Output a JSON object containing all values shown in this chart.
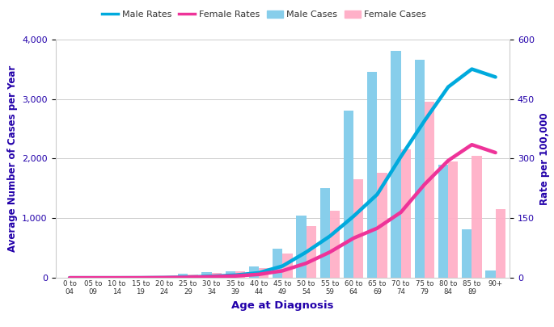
{
  "age_groups": [
    "0 to\n04",
    "05 to\n09",
    "10 to\n14",
    "15 to\n19",
    "20 to\n24",
    "25 to\n29",
    "30 to\n34",
    "35 to\n39",
    "40 to\n44",
    "45 to\n49",
    "50 to\n54",
    "55 to\n59",
    "60 to\n64",
    "65 to\n69",
    "70 to\n74",
    "75 to\n79",
    "80 to\n84",
    "85 to\n89",
    "90+"
  ],
  "age_labels_top": [
    "0 to",
    "05 to",
    "10 to",
    "15 to",
    "20 to",
    "25 to",
    "30 to",
    "35 to",
    "40 to",
    "45 to",
    "50 to",
    "55 to",
    "60 to",
    "65 to",
    "70 to",
    "75 to",
    "80 to",
    "85 to",
    "90+"
  ],
  "age_labels_bot": [
    "04",
    "09",
    "14",
    "19",
    "24",
    "29",
    "34",
    "39",
    "44",
    "49",
    "54",
    "59",
    "64",
    "69",
    "74",
    "79",
    "84",
    "89",
    ""
  ],
  "male_cases": [
    5,
    5,
    5,
    10,
    15,
    70,
    95,
    110,
    190,
    490,
    1040,
    1500,
    2800,
    3450,
    3800,
    3650,
    1900,
    820,
    120
  ],
  "female_cases": [
    5,
    5,
    5,
    10,
    15,
    55,
    85,
    105,
    165,
    410,
    870,
    1120,
    1650,
    1760,
    2150,
    2950,
    1950,
    2050,
    1150
  ],
  "male_rates": [
    0.3,
    0.3,
    0.3,
    0.4,
    0.8,
    2,
    4,
    7,
    13,
    30,
    65,
    105,
    155,
    210,
    305,
    395,
    480,
    525,
    505
  ],
  "female_rates": [
    0.3,
    0.3,
    0.3,
    0.4,
    0.8,
    1.5,
    3,
    5,
    9,
    18,
    37,
    65,
    100,
    125,
    165,
    235,
    295,
    335,
    315
  ],
  "male_cases_color": "#87CEEB",
  "female_cases_color": "#FFB0C8",
  "male_rates_color": "#00AADD",
  "female_rates_color": "#EE3399",
  "axis_label_color": "#2200AA",
  "tick_label_color": "#2200AA",
  "xlabel": "Age at Diagnosis",
  "ylabel_left": "Average Number of Cases per Year",
  "ylabel_right": "Rate per 100,000",
  "ylim_left": [
    0,
    4000
  ],
  "ylim_right": [
    0,
    600
  ],
  "yticks_left": [
    0,
    1000,
    2000,
    3000,
    4000
  ],
  "yticks_right": [
    0,
    150,
    300,
    450,
    600
  ],
  "grid_color": "#cccccc",
  "background_color": "#ffffff",
  "line_width": 3.2,
  "bar_width": 0.42
}
